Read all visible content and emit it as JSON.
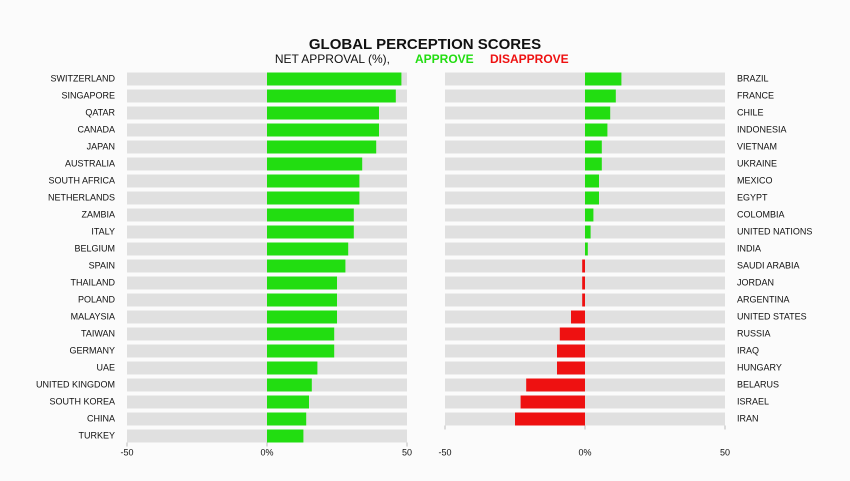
{
  "title": "GLOBAL PERCEPTION SCORES",
  "subtitle": "NET APPROVAL (%),",
  "legend": [
    {
      "name": "APPROVE",
      "color": "#22dd11"
    },
    {
      "name": "DISAPPROVE",
      "color": "#ee1111"
    }
  ],
  "chart_data": [
    {
      "type": "bar",
      "orientation": "horizontal",
      "labels_side": "left",
      "track_color": "#e0e0e0",
      "categories": [
        "SWITZERLAND",
        "SINGAPORE",
        "QATAR",
        "CANADA",
        "JAPAN",
        "AUSTRALIA",
        "SOUTH AFRICA",
        "NETHERLANDS",
        "ZAMBIA",
        "ITALY",
        "BELGIUM",
        "SPAIN",
        "THAILAND",
        "POLAND",
        "MALAYSIA",
        "TAIWAN",
        "GERMANY",
        "UAE",
        "UNITED KINGDOM",
        "SOUTH KOREA",
        "CHINA",
        "TURKEY"
      ],
      "values": [
        48,
        46,
        40,
        40,
        39,
        34,
        33,
        33,
        31,
        31,
        29,
        28,
        25,
        25,
        25,
        24,
        24,
        18,
        16,
        15,
        14,
        13
      ],
      "xlim": [
        -50,
        50
      ],
      "xticks": [
        -50,
        {
          "value": 0,
          "label": "0%"
        },
        50
      ]
    },
    {
      "type": "bar",
      "orientation": "horizontal",
      "labels_side": "right",
      "track_color": "#e0e0e0",
      "categories": [
        "BRAZIL",
        "FRANCE",
        "CHILE",
        "INDONESIA",
        "VIETNAM",
        "UKRAINE",
        "MEXICO",
        "EGYPT",
        "COLOMBIA",
        "UNITED NATIONS",
        "INDIA",
        "SAUDI ARABIA",
        "JORDAN",
        "ARGENTINA",
        "UNITED STATES",
        "RUSSIA",
        "IRAQ",
        "HUNGARY",
        "BELARUS",
        "ISRAEL",
        "IRAN"
      ],
      "values": [
        13,
        11,
        9,
        8,
        6,
        6,
        5,
        5,
        3,
        2,
        1,
        -1,
        -1,
        -1,
        -5,
        -9,
        -10,
        -10,
        -21,
        -23,
        -25
      ],
      "xlim": [
        -50,
        50
      ],
      "xticks": [
        -50,
        {
          "value": 0,
          "label": "0%"
        },
        50
      ]
    }
  ]
}
